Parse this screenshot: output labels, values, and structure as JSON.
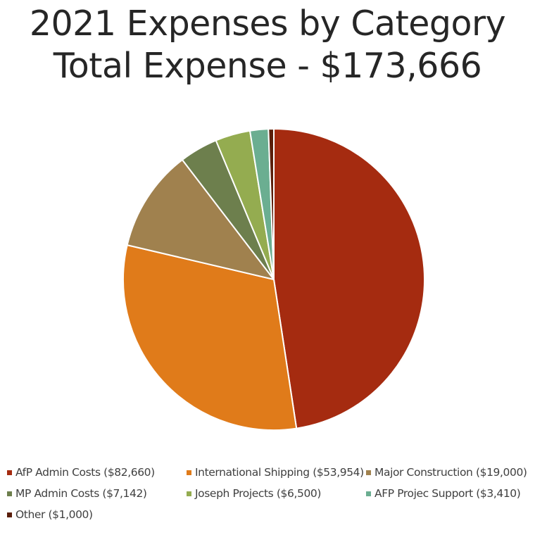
{
  "chart_data": {
    "type": "pie",
    "title": "2021 Expenses by Category",
    "subtitle": "Total Expense - $173,666",
    "categories": [
      "AfP Admin Costs ($82,660)",
      "International Shipping ($53,954)",
      "Major Construction ($19,000)",
      "MP Admin Costs ($7,142)",
      "Joseph Projects ($6,500)",
      "AFP Projec Support ($3,410)",
      "Other ($1,000)"
    ],
    "values": [
      82660,
      53954,
      19000,
      7142,
      6500,
      3410,
      1000
    ],
    "colors": [
      "#A52B10",
      "#E07B1A",
      "#A0814E",
      "#6D7F4D",
      "#94AC50",
      "#6BAE91",
      "#5A1E0A"
    ],
    "legend_position": "bottom",
    "start_angle": "12 o'clock",
    "direction": "clockwise"
  }
}
